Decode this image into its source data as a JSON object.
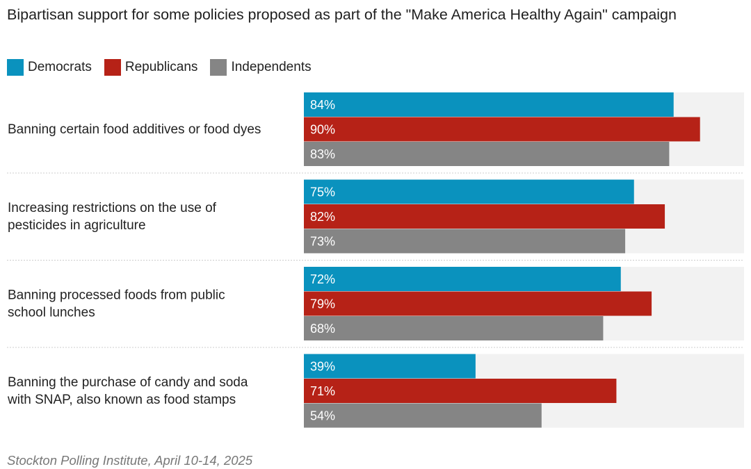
{
  "title": "Bipartisan support for some policies proposed as part of the \"Make America Healthy Again\" campaign",
  "legend": [
    {
      "name": "Democrats",
      "color": "#0a92be"
    },
    {
      "name": "Republicans",
      "color": "#b62217"
    },
    {
      "name": "Independents",
      "color": "#858585"
    }
  ],
  "footer": "Stockton Polling Institute, April 10-14, 2025",
  "chart_data": {
    "type": "bar",
    "orientation": "horizontal",
    "title": "Bipartisan support for some policies proposed as part of the \"Make America Healthy Again\" campaign",
    "categories": [
      [
        "Banning certain food additives or food dyes"
      ],
      [
        "Increasing restrictions on the use of",
        "pesticides in agriculture"
      ],
      [
        "Banning processed foods from public",
        "school lunches"
      ],
      [
        "Banning the purchase of candy and soda",
        "with SNAP, also known as food stamps"
      ]
    ],
    "series": [
      {
        "name": "Democrats",
        "color": "#0a92be",
        "values": [
          84,
          75,
          72,
          39
        ]
      },
      {
        "name": "Republicans",
        "color": "#b62217",
        "values": [
          90,
          82,
          79,
          71
        ]
      },
      {
        "name": "Independents",
        "color": "#858585",
        "values": [
          83,
          73,
          68,
          54
        ]
      }
    ],
    "value_suffix": "%",
    "xlim": [
      0,
      100
    ],
    "background_track_color": "#f2f2f2",
    "separator_color": "#cccccc",
    "grid": false,
    "legend_position": "top-left"
  }
}
